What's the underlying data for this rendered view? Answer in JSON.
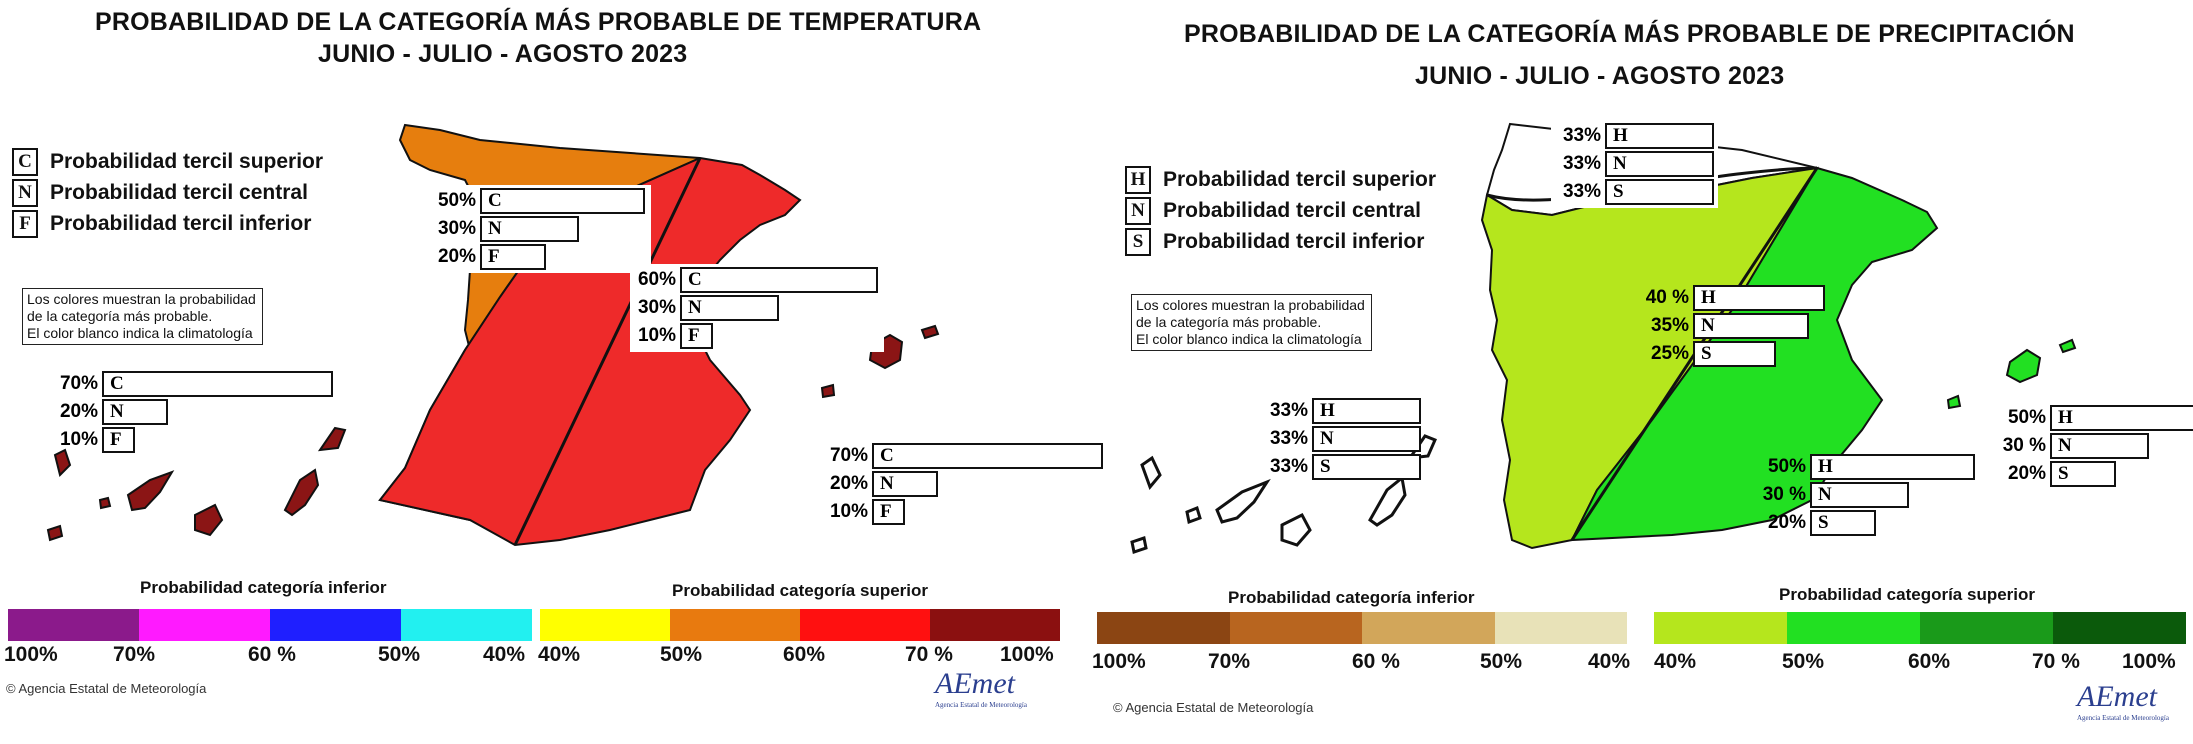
{
  "temperature": {
    "title_line1": "PROBABILIDAD DE LA CATEGORÍA MÁS PROBABLE DE  TEMPERATURA",
    "title_line2": "JUNIO - JULIO - AGOSTO 2023",
    "legend": [
      {
        "letter": "C",
        "label": "Probabilidad  tercil superior"
      },
      {
        "letter": "N",
        "label": "Probabilidad  tercil central"
      },
      {
        "letter": "F",
        "label": "Probabilidad  tercil inferior"
      }
    ],
    "note": [
      "Los colores muestran la probabilidad",
      "de la categoría más probable.",
      "El color blanco indica la climatología"
    ],
    "regions": [
      {
        "name": "northwest",
        "color": "#e67e0e",
        "rows": [
          {
            "pct": "50%",
            "letter": "C",
            "value": 50
          },
          {
            "pct": "30%",
            "letter": "N",
            "value": 30
          },
          {
            "pct": "20%",
            "letter": "F",
            "value": 20
          }
        ]
      },
      {
        "name": "east",
        "color": "#ee2a2a",
        "rows": [
          {
            "pct": "60%",
            "letter": "C",
            "value": 60
          },
          {
            "pct": "30%",
            "letter": "N",
            "value": 30
          },
          {
            "pct": "10%",
            "letter": "F",
            "value": 10
          }
        ]
      },
      {
        "name": "canarias",
        "color": "#8b1515",
        "rows": [
          {
            "pct": "70%",
            "letter": "C",
            "value": 70
          },
          {
            "pct": "20%",
            "letter": "N",
            "value": 20
          },
          {
            "pct": "10%",
            "letter": "F",
            "value": 10
          }
        ]
      },
      {
        "name": "baleares",
        "color": "#8b1515",
        "rows": [
          {
            "pct": "70%",
            "letter": "C",
            "value": 70
          },
          {
            "pct": "20%",
            "letter": "N",
            "value": 20
          },
          {
            "pct": "10%",
            "letter": "F",
            "value": 10
          }
        ]
      }
    ],
    "scale_lower_label": "Probabilidad categoría inferior",
    "scale_upper_label": "Probabilidad categoría superior",
    "lower_colors": [
      "#8b1a8b",
      "#ff1aff",
      "#1f1fff",
      "#22f0f0"
    ],
    "upper_colors": [
      "#ffff00",
      "#e87a0f",
      "#ff1010",
      "#8b1010"
    ],
    "ticks": [
      "100%",
      "70%",
      "60 %",
      "50%",
      "40%",
      "40%",
      "50%",
      "60%",
      "70 %",
      "100%"
    ],
    "credit": "Agencia Estatal de Meteorología",
    "logo": "AEmet"
  },
  "precipitation": {
    "title_line1": "PROBABILIDAD DE LA  CATEGORÍA MÁS PROBABLE DE PRECIPITACIÓN",
    "title_line2": "JUNIO - JULIO - AGOSTO 2023",
    "legend": [
      {
        "letter": "H",
        "label": "Probabilidad  tercil superior"
      },
      {
        "letter": "N",
        "label": "Probabilidad  tercil central"
      },
      {
        "letter": "S",
        "label": "Probabilidad  tercil inferior"
      }
    ],
    "note": [
      "Los colores muestran la probabilidad",
      "de la categoría más probable.",
      "El color blanco indica la climatología"
    ],
    "regions": [
      {
        "name": "north",
        "color": "#ffffff",
        "rows": [
          {
            "pct": "33%",
            "letter": "H",
            "value": 33
          },
          {
            "pct": "33%",
            "letter": "N",
            "value": 33
          },
          {
            "pct": "33%",
            "letter": "S",
            "value": 33
          }
        ]
      },
      {
        "name": "central",
        "color": "#b5e61d",
        "rows": [
          {
            "pct": "40 %",
            "letter": "H",
            "value": 40
          },
          {
            "pct": "35%",
            "letter": "N",
            "value": 35
          },
          {
            "pct": "25%",
            "letter": "S",
            "value": 25
          }
        ]
      },
      {
        "name": "canarias",
        "color": "#ffffff",
        "rows": [
          {
            "pct": "33%",
            "letter": "H",
            "value": 33
          },
          {
            "pct": "33%",
            "letter": "N",
            "value": 33
          },
          {
            "pct": "33%",
            "letter": "S",
            "value": 33
          }
        ]
      },
      {
        "name": "east",
        "color": "#22e022",
        "rows": [
          {
            "pct": "50%",
            "letter": "H",
            "value": 50
          },
          {
            "pct": "30 %",
            "letter": "N",
            "value": 30
          },
          {
            "pct": "20%",
            "letter": "S",
            "value": 20
          }
        ]
      },
      {
        "name": "baleares",
        "color": "#22e022",
        "rows": [
          {
            "pct": "50%",
            "letter": "H",
            "value": 50
          },
          {
            "pct": "30 %",
            "letter": "N",
            "value": 30
          },
          {
            "pct": "20%",
            "letter": "S",
            "value": 20
          }
        ]
      }
    ],
    "scale_lower_label": "Probabilidad categoría inferior",
    "scale_upper_label": "Probabilidad categoría superior",
    "lower_colors": [
      "#8b4513",
      "#b8651f",
      "#d2a65a",
      "#e8e2b8"
    ],
    "upper_colors": [
      "#b5e61d",
      "#22e022",
      "#1a9a1a",
      "#0b5a0b"
    ],
    "ticks": [
      "100%",
      "70%",
      "60 %",
      "50%",
      "40%",
      "40%",
      "50%",
      "60%",
      "70 %",
      "100%"
    ],
    "credit": "Agencia Estatal de Meteorología",
    "logo": "AEmet"
  }
}
